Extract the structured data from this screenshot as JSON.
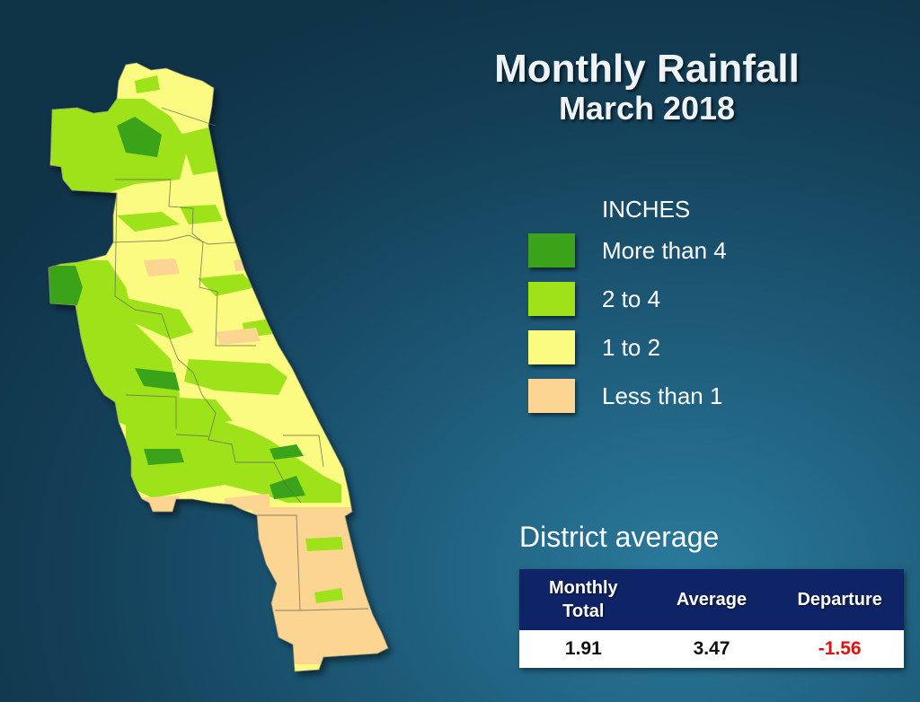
{
  "title": "Monthly Rainfall",
  "subtitle": "March 2018",
  "legend": {
    "title": "INCHES",
    "items": [
      {
        "label": "More than 4",
        "color": "#3aa31a"
      },
      {
        "label": "2 to 4",
        "color": "#9ee21a"
      },
      {
        "label": "1 to 2",
        "color": "#fbfb82"
      },
      {
        "label": "Less than 1",
        "color": "#fcd593"
      }
    ]
  },
  "district": {
    "heading": "District average",
    "columns": [
      "Monthly\nTotal",
      "Average",
      "Departure"
    ],
    "values": [
      "1.91",
      "3.47",
      "-1.56"
    ],
    "departure_color": "#e01010",
    "header_color": "#0f2466"
  }
}
